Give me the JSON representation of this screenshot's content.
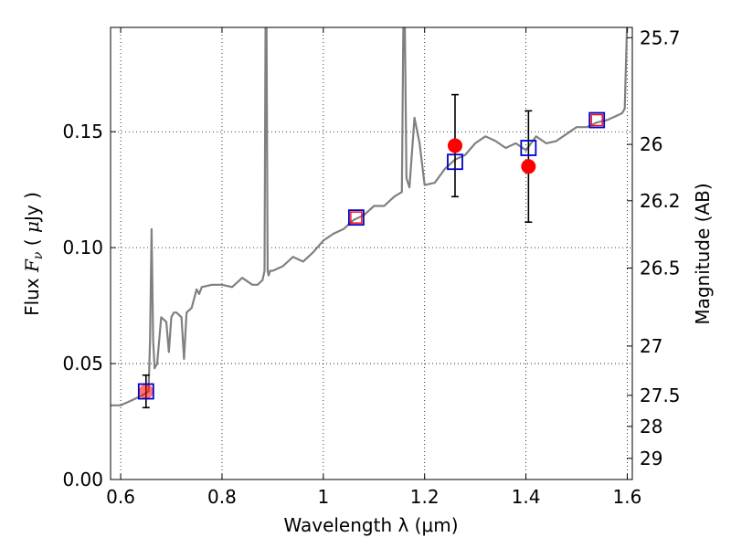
{
  "chart_data": {
    "type": "line",
    "title": "",
    "xlabel": "Wavelength  λ (μm)",
    "ylabel": "Flux  F_ν  ( μJy )",
    "ylabel_parts": {
      "pre": "Flux  ",
      "sym": "F",
      "sub": "ν",
      "post": "  ( ",
      "mu": "μ",
      "unit": "Jy )"
    },
    "ylabel_right": "Magnitude (AB)",
    "xlim": [
      0.58,
      1.61
    ],
    "ylim": [
      0.0,
      0.195
    ],
    "grid": true,
    "x_ticks": [
      {
        "value": 0.6,
        "label": "0.6"
      },
      {
        "value": 0.8,
        "label": "0.8"
      },
      {
        "value": 1.0,
        "label": "1"
      },
      {
        "value": 1.2,
        "label": "1.2"
      },
      {
        "value": 1.4,
        "label": "1.4"
      },
      {
        "value": 1.6,
        "label": "1.6"
      }
    ],
    "y_ticks": [
      {
        "value": 0.0,
        "label": "0.00"
      },
      {
        "value": 0.05,
        "label": "0.05"
      },
      {
        "value": 0.1,
        "label": "0.10"
      },
      {
        "value": 0.15,
        "label": "0.15"
      }
    ],
    "mag_ticks": [
      {
        "value": 25.7,
        "label": "25.7"
      },
      {
        "value": 26.0,
        "label": "26"
      },
      {
        "value": 26.2,
        "label": "26.2"
      },
      {
        "value": 26.5,
        "label": "26.5"
      },
      {
        "value": 27.0,
        "label": "27"
      },
      {
        "value": 27.5,
        "label": "27.5"
      },
      {
        "value": 28.0,
        "label": "28"
      },
      {
        "value": 29.0,
        "label": "29"
      }
    ],
    "series": [
      {
        "name": "model_spectrum",
        "kind": "line",
        "color": "#808080",
        "x": [
          0.58,
          0.6,
          0.62,
          0.64,
          0.655,
          0.658,
          0.661,
          0.664,
          0.667,
          0.672,
          0.68,
          0.69,
          0.695,
          0.7,
          0.705,
          0.71,
          0.72,
          0.725,
          0.73,
          0.74,
          0.75,
          0.755,
          0.76,
          0.78,
          0.8,
          0.82,
          0.84,
          0.86,
          0.87,
          0.88,
          0.884,
          0.886,
          0.888,
          0.89,
          0.892,
          0.895,
          0.9,
          0.92,
          0.94,
          0.96,
          0.98,
          1.0,
          1.02,
          1.04,
          1.06,
          1.08,
          1.1,
          1.12,
          1.14,
          1.155,
          1.158,
          1.161,
          1.164,
          1.167,
          1.17,
          1.18,
          1.19,
          1.2,
          1.22,
          1.24,
          1.26,
          1.28,
          1.3,
          1.32,
          1.34,
          1.36,
          1.38,
          1.4,
          1.42,
          1.44,
          1.46,
          1.48,
          1.5,
          1.52,
          1.54,
          1.56,
          1.58,
          1.59,
          1.595,
          1.6,
          1.605,
          1.61
        ],
        "y": [
          0.032,
          0.032,
          0.034,
          0.036,
          0.038,
          0.06,
          0.108,
          0.06,
          0.048,
          0.05,
          0.07,
          0.068,
          0.055,
          0.07,
          0.072,
          0.072,
          0.07,
          0.052,
          0.072,
          0.074,
          0.082,
          0.08,
          0.083,
          0.084,
          0.084,
          0.083,
          0.087,
          0.084,
          0.084,
          0.086,
          0.09,
          0.195,
          0.195,
          0.09,
          0.088,
          0.09,
          0.09,
          0.092,
          0.096,
          0.094,
          0.098,
          0.103,
          0.106,
          0.108,
          0.112,
          0.114,
          0.118,
          0.118,
          0.122,
          0.124,
          0.195,
          0.195,
          0.13,
          0.128,
          0.126,
          0.156,
          0.145,
          0.127,
          0.128,
          0.134,
          0.138,
          0.14,
          0.145,
          0.148,
          0.146,
          0.143,
          0.145,
          0.142,
          0.148,
          0.145,
          0.146,
          0.149,
          0.152,
          0.152,
          0.154,
          0.155,
          0.157,
          0.158,
          0.16,
          0.2,
          0.2,
          0.2
        ]
      },
      {
        "name": "observed_photometry",
        "kind": "scatter",
        "color": "#ff0000",
        "x": [
          0.65,
          1.26,
          1.405
        ],
        "y": [
          0.038,
          0.144,
          0.135
        ],
        "yerr": [
          0.007,
          0.022,
          0.024
        ]
      },
      {
        "name": "model_photometry",
        "kind": "square",
        "color": "#0000cc",
        "x": [
          0.65,
          1.065,
          1.26,
          1.405,
          1.54
        ],
        "y": [
          0.038,
          0.113,
          0.137,
          0.143,
          0.155
        ]
      },
      {
        "name": "small_red_squares",
        "kind": "square",
        "color": "#ff0000",
        "x": [
          1.065,
          1.54
        ],
        "y": [
          0.113,
          0.155
        ]
      }
    ]
  }
}
